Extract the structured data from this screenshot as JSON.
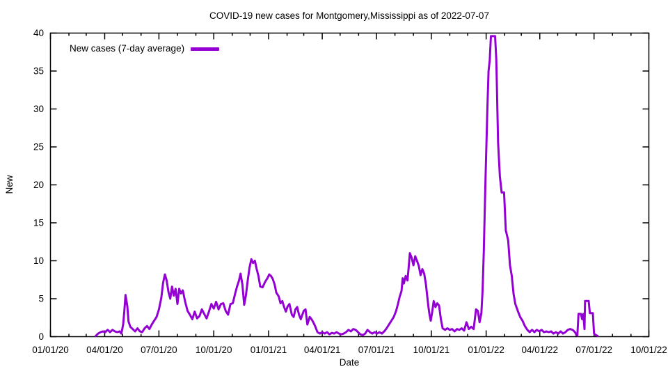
{
  "chart_data": {
    "type": "line",
    "title": "COVID-19 new cases for Montgomery,Mississippi as of 2022-07-07",
    "xlabel": "Date",
    "ylabel": "New",
    "x_range": [
      "2020-01-01",
      "2022-10-01"
    ],
    "ylim": [
      0,
      40
    ],
    "y_ticks": [
      0,
      5,
      10,
      15,
      20,
      25,
      30,
      35,
      40
    ],
    "x_major_ticks": [
      {
        "date": "2020-01-01",
        "label": "01/01/20"
      },
      {
        "date": "2020-04-01",
        "label": "04/01/20"
      },
      {
        "date": "2020-07-01",
        "label": "07/01/20"
      },
      {
        "date": "2020-10-01",
        "label": "10/01/20"
      },
      {
        "date": "2021-01-01",
        "label": "01/01/21"
      },
      {
        "date": "2021-04-01",
        "label": "04/01/21"
      },
      {
        "date": "2021-07-01",
        "label": "07/01/21"
      },
      {
        "date": "2021-10-01",
        "label": "10/01/21"
      },
      {
        "date": "2022-01-01",
        "label": "01/01/22"
      },
      {
        "date": "2022-04-01",
        "label": "04/01/22"
      },
      {
        "date": "2022-07-01",
        "label": "07/01/22"
      },
      {
        "date": "2022-10-01",
        "label": "10/01/22"
      }
    ],
    "x_minor_tick_interval": "1 month",
    "grid": false,
    "legend_position": "top-left",
    "axis_color": "#000000",
    "series": [
      {
        "name": "New cases (7-day average)",
        "color": "#9400D3",
        "points": [
          [
            "2020-03-17",
            0.1
          ],
          [
            "2020-03-21",
            0.4
          ],
          [
            "2020-03-25",
            0.6
          ],
          [
            "2020-03-29",
            0.7
          ],
          [
            "2020-04-02",
            0.6
          ],
          [
            "2020-04-06",
            0.9
          ],
          [
            "2020-04-10",
            0.6
          ],
          [
            "2020-04-14",
            0.9
          ],
          [
            "2020-04-18",
            0.7
          ],
          [
            "2020-04-22",
            0.6
          ],
          [
            "2020-04-26",
            0.7
          ],
          [
            "2020-04-29",
            0.4
          ],
          [
            "2020-05-02",
            1.6
          ],
          [
            "2020-05-04",
            3.4
          ],
          [
            "2020-05-06",
            5.5
          ],
          [
            "2020-05-09",
            4.0
          ],
          [
            "2020-05-11",
            2.0
          ],
          [
            "2020-05-14",
            1.3
          ],
          [
            "2020-05-18",
            1.0
          ],
          [
            "2020-05-22",
            0.7
          ],
          [
            "2020-05-26",
            1.1
          ],
          [
            "2020-05-30",
            0.7
          ],
          [
            "2020-06-03",
            0.6
          ],
          [
            "2020-06-07",
            1.1
          ],
          [
            "2020-06-11",
            1.4
          ],
          [
            "2020-06-15",
            1.0
          ],
          [
            "2020-06-19",
            1.6
          ],
          [
            "2020-06-23",
            2.1
          ],
          [
            "2020-06-27",
            2.6
          ],
          [
            "2020-07-01",
            3.6
          ],
          [
            "2020-07-05",
            5.1
          ],
          [
            "2020-07-08",
            7.1
          ],
          [
            "2020-07-11",
            8.2
          ],
          [
            "2020-07-14",
            7.4
          ],
          [
            "2020-07-17",
            5.9
          ],
          [
            "2020-07-20",
            5.0
          ],
          [
            "2020-07-23",
            6.6
          ],
          [
            "2020-07-26",
            5.4
          ],
          [
            "2020-07-29",
            6.3
          ],
          [
            "2020-08-01",
            4.3
          ],
          [
            "2020-08-04",
            6.3
          ],
          [
            "2020-08-07",
            5.7
          ],
          [
            "2020-08-10",
            6.1
          ],
          [
            "2020-08-14",
            4.6
          ],
          [
            "2020-08-18",
            3.4
          ],
          [
            "2020-08-22",
            2.9
          ],
          [
            "2020-08-26",
            2.3
          ],
          [
            "2020-08-30",
            3.3
          ],
          [
            "2020-09-03",
            2.4
          ],
          [
            "2020-09-07",
            2.7
          ],
          [
            "2020-09-11",
            3.6
          ],
          [
            "2020-09-15",
            3.0
          ],
          [
            "2020-09-19",
            2.4
          ],
          [
            "2020-09-23",
            3.3
          ],
          [
            "2020-09-27",
            4.3
          ],
          [
            "2020-10-01",
            3.7
          ],
          [
            "2020-10-05",
            4.6
          ],
          [
            "2020-10-09",
            3.6
          ],
          [
            "2020-10-13",
            4.3
          ],
          [
            "2020-10-17",
            4.4
          ],
          [
            "2020-10-21",
            3.4
          ],
          [
            "2020-10-25",
            2.9
          ],
          [
            "2020-10-29",
            4.3
          ],
          [
            "2020-11-02",
            4.4
          ],
          [
            "2020-11-06",
            5.7
          ],
          [
            "2020-11-09",
            6.6
          ],
          [
            "2020-11-12",
            7.3
          ],
          [
            "2020-11-15",
            8.3
          ],
          [
            "2020-11-18",
            6.9
          ],
          [
            "2020-11-21",
            4.2
          ],
          [
            "2020-11-24",
            5.5
          ],
          [
            "2020-11-27",
            7.4
          ],
          [
            "2020-11-30",
            9.1
          ],
          [
            "2020-12-03",
            10.2
          ],
          [
            "2020-12-06",
            9.7
          ],
          [
            "2020-12-09",
            10.0
          ],
          [
            "2020-12-12",
            8.9
          ],
          [
            "2020-12-15",
            8.0
          ],
          [
            "2020-12-18",
            6.6
          ],
          [
            "2020-12-22",
            6.5
          ],
          [
            "2020-12-26",
            7.2
          ],
          [
            "2020-12-30",
            7.7
          ],
          [
            "2021-01-02",
            8.2
          ],
          [
            "2021-01-05",
            8.0
          ],
          [
            "2021-01-08",
            7.6
          ],
          [
            "2021-01-11",
            6.9
          ],
          [
            "2021-01-14",
            5.8
          ],
          [
            "2021-01-18",
            5.3
          ],
          [
            "2021-01-21",
            4.4
          ],
          [
            "2021-01-24",
            4.7
          ],
          [
            "2021-01-27",
            3.9
          ],
          [
            "2021-01-30",
            3.3
          ],
          [
            "2021-02-02",
            4.0
          ],
          [
            "2021-02-05",
            4.3
          ],
          [
            "2021-02-09",
            2.9
          ],
          [
            "2021-02-12",
            2.6
          ],
          [
            "2021-02-15",
            3.6
          ],
          [
            "2021-02-18",
            3.9
          ],
          [
            "2021-02-21",
            2.9
          ],
          [
            "2021-02-24",
            2.3
          ],
          [
            "2021-03-01",
            3.4
          ],
          [
            "2021-03-04",
            3.6
          ],
          [
            "2021-03-07",
            1.6
          ],
          [
            "2021-03-11",
            2.6
          ],
          [
            "2021-03-14",
            2.3
          ],
          [
            "2021-03-17",
            1.9
          ],
          [
            "2021-03-20",
            1.4
          ],
          [
            "2021-03-24",
            0.6
          ],
          [
            "2021-03-28",
            0.4
          ],
          [
            "2021-04-01",
            0.6
          ],
          [
            "2021-04-05",
            0.4
          ],
          [
            "2021-04-09",
            0.6
          ],
          [
            "2021-04-13",
            0.3
          ],
          [
            "2021-04-17",
            0.5
          ],
          [
            "2021-04-21",
            0.4
          ],
          [
            "2021-04-25",
            0.6
          ],
          [
            "2021-04-29",
            0.4
          ],
          [
            "2021-05-03",
            0.3
          ],
          [
            "2021-05-07",
            0.4
          ],
          [
            "2021-05-11",
            0.6
          ],
          [
            "2021-05-15",
            0.9
          ],
          [
            "2021-05-19",
            0.7
          ],
          [
            "2021-05-23",
            1.0
          ],
          [
            "2021-05-27",
            0.9
          ],
          [
            "2021-05-31",
            0.6
          ],
          [
            "2021-06-04",
            0.3
          ],
          [
            "2021-06-08",
            0.2
          ],
          [
            "2021-06-12",
            0.4
          ],
          [
            "2021-06-16",
            0.9
          ],
          [
            "2021-06-20",
            0.6
          ],
          [
            "2021-06-24",
            0.4
          ],
          [
            "2021-06-28",
            0.6
          ],
          [
            "2021-07-02",
            0.4
          ],
          [
            "2021-07-06",
            0.6
          ],
          [
            "2021-07-10",
            0.4
          ],
          [
            "2021-07-14",
            0.7
          ],
          [
            "2021-07-18",
            1.1
          ],
          [
            "2021-07-22",
            1.6
          ],
          [
            "2021-07-26",
            2.1
          ],
          [
            "2021-07-30",
            2.6
          ],
          [
            "2021-08-03",
            3.4
          ],
          [
            "2021-08-06",
            4.3
          ],
          [
            "2021-08-09",
            5.3
          ],
          [
            "2021-08-12",
            6.0
          ],
          [
            "2021-08-14",
            7.7
          ],
          [
            "2021-08-16",
            7.0
          ],
          [
            "2021-08-19",
            8.0
          ],
          [
            "2021-08-22",
            7.4
          ],
          [
            "2021-08-24",
            9.1
          ],
          [
            "2021-08-26",
            11.0
          ],
          [
            "2021-08-29",
            10.4
          ],
          [
            "2021-09-01",
            9.4
          ],
          [
            "2021-09-04",
            10.6
          ],
          [
            "2021-09-07",
            10.0
          ],
          [
            "2021-09-10",
            9.3
          ],
          [
            "2021-09-13",
            8.1
          ],
          [
            "2021-09-16",
            8.9
          ],
          [
            "2021-09-19",
            8.3
          ],
          [
            "2021-09-22",
            6.9
          ],
          [
            "2021-09-24",
            5.4
          ],
          [
            "2021-09-26",
            4.0
          ],
          [
            "2021-09-28",
            2.9
          ],
          [
            "2021-09-30",
            2.1
          ],
          [
            "2021-10-02",
            3.0
          ],
          [
            "2021-10-05",
            4.7
          ],
          [
            "2021-10-08",
            3.9
          ],
          [
            "2021-10-11",
            4.4
          ],
          [
            "2021-10-14",
            4.1
          ],
          [
            "2021-10-17",
            2.3
          ],
          [
            "2021-10-20",
            1.1
          ],
          [
            "2021-10-24",
            0.9
          ],
          [
            "2021-10-28",
            1.1
          ],
          [
            "2021-11-01",
            0.9
          ],
          [
            "2021-11-05",
            1.0
          ],
          [
            "2021-11-09",
            0.7
          ],
          [
            "2021-11-13",
            1.0
          ],
          [
            "2021-11-17",
            0.9
          ],
          [
            "2021-11-21",
            1.1
          ],
          [
            "2021-11-25",
            0.8
          ],
          [
            "2021-11-29",
            1.9
          ],
          [
            "2021-12-03",
            1.0
          ],
          [
            "2021-12-07",
            1.3
          ],
          [
            "2021-12-11",
            1.0
          ],
          [
            "2021-12-15",
            3.6
          ],
          [
            "2021-12-18",
            3.4
          ],
          [
            "2021-12-21",
            1.9
          ],
          [
            "2021-12-24",
            3.1
          ],
          [
            "2021-12-26",
            6.0
          ],
          [
            "2021-12-28",
            11.0
          ],
          [
            "2021-12-31",
            21.0
          ],
          [
            "2022-01-03",
            30.0
          ],
          [
            "2022-01-05",
            35.0
          ],
          [
            "2022-01-07",
            36.4
          ],
          [
            "2022-01-09",
            39.6
          ],
          [
            "2022-01-16",
            39.6
          ],
          [
            "2022-01-18",
            36.6
          ],
          [
            "2022-01-19",
            33.0
          ],
          [
            "2022-01-21",
            25.6
          ],
          [
            "2022-01-24",
            21.1
          ],
          [
            "2022-01-27",
            19.0
          ],
          [
            "2022-01-31",
            19.0
          ],
          [
            "2022-02-03",
            14.0
          ],
          [
            "2022-02-07",
            12.7
          ],
          [
            "2022-02-10",
            9.4
          ],
          [
            "2022-02-13",
            8.0
          ],
          [
            "2022-02-16",
            5.6
          ],
          [
            "2022-02-19",
            4.3
          ],
          [
            "2022-02-23",
            3.4
          ],
          [
            "2022-02-27",
            2.6
          ],
          [
            "2022-03-03",
            2.1
          ],
          [
            "2022-03-07",
            1.4
          ],
          [
            "2022-03-11",
            0.9
          ],
          [
            "2022-03-15",
            0.6
          ],
          [
            "2022-03-19",
            0.9
          ],
          [
            "2022-03-23",
            0.6
          ],
          [
            "2022-03-27",
            0.9
          ],
          [
            "2022-03-31",
            0.7
          ],
          [
            "2022-04-04",
            0.9
          ],
          [
            "2022-04-08",
            0.6
          ],
          [
            "2022-04-12",
            0.7
          ],
          [
            "2022-04-16",
            0.6
          ],
          [
            "2022-04-20",
            0.7
          ],
          [
            "2022-04-24",
            0.4
          ],
          [
            "2022-04-28",
            0.6
          ],
          [
            "2022-05-02",
            0.4
          ],
          [
            "2022-05-06",
            0.7
          ],
          [
            "2022-05-10",
            0.4
          ],
          [
            "2022-05-14",
            0.6
          ],
          [
            "2022-05-18",
            0.9
          ],
          [
            "2022-05-22",
            1.0
          ],
          [
            "2022-05-26",
            0.9
          ],
          [
            "2022-05-30",
            0.6
          ],
          [
            "2022-06-01",
            0.3
          ],
          [
            "2022-06-03",
            0.15
          ],
          [
            "2022-06-05",
            3.0
          ],
          [
            "2022-06-09",
            3.0
          ],
          [
            "2022-06-11",
            2.3
          ],
          [
            "2022-06-13",
            3.0
          ],
          [
            "2022-06-15",
            1.0
          ],
          [
            "2022-06-16",
            4.7
          ],
          [
            "2022-06-22",
            4.7
          ],
          [
            "2022-06-24",
            3.1
          ],
          [
            "2022-06-29",
            3.1
          ],
          [
            "2022-07-01",
            0.4
          ],
          [
            "2022-07-04",
            0.2
          ],
          [
            "2022-07-07",
            0.1
          ]
        ]
      }
    ]
  }
}
